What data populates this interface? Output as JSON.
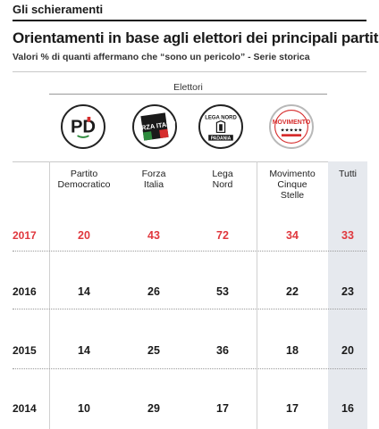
{
  "header": {
    "section": "Gli schieramenti",
    "title": "Orientamenti in base agli elettori dei principali partiti",
    "subtitle": "Valori % di quanti affermano che “sono un pericolo” - Serie storica",
    "group_label": "Elettori"
  },
  "logos": [
    {
      "name": "pd-logo",
      "text": "PD"
    },
    {
      "name": "forza-italia-logo",
      "text": "FORZA ITALIA"
    },
    {
      "name": "lega-nord-logo",
      "text": "LEGA NORD",
      "text2": "PADANIA"
    },
    {
      "name": "movimento-5-stelle-logo",
      "text": "MOVIMENTO",
      "text2": "★★★★★"
    }
  ],
  "colors": {
    "highlight_row": "#e0383e",
    "tutti_band": "#e6e9ee",
    "text": "#1a1a1a"
  },
  "chart_data": {
    "type": "table",
    "columns": [
      "Partito Democratico",
      "Forza Italia",
      "Lega Nord",
      "Movimento Cinque Stelle",
      "Tutti"
    ],
    "column_lines": [
      [
        "Partito",
        "Democratico"
      ],
      [
        "Forza",
        "Italia"
      ],
      [
        "Lega",
        "Nord"
      ],
      [
        "Movimento",
        "Cinque",
        "Stelle"
      ],
      [
        "Tutti"
      ]
    ],
    "rows": [
      {
        "year": "2017",
        "values": [
          "20",
          "43",
          "72",
          "34",
          "33"
        ]
      },
      {
        "year": "2016",
        "values": [
          "14",
          "26",
          "53",
          "22",
          "23"
        ]
      },
      {
        "year": "2015",
        "values": [
          "14",
          "25",
          "36",
          "18",
          "20"
        ]
      },
      {
        "year": "2014",
        "values": [
          "10",
          "29",
          "17",
          "17",
          "16"
        ]
      }
    ]
  }
}
